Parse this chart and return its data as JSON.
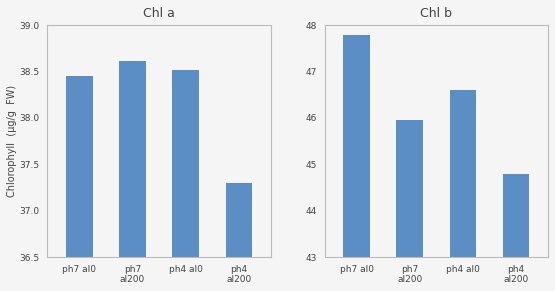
{
  "chl_a": {
    "title": "Chl a",
    "categories": [
      "ph7 al0",
      "ph7\nal200",
      "ph4 al0",
      "ph4\nal200"
    ],
    "values": [
      38.45,
      38.62,
      38.52,
      37.3
    ],
    "ylim": [
      36.5,
      39
    ],
    "yticks": [
      36.5,
      37.0,
      37.5,
      38.0,
      38.5,
      39.0
    ],
    "ylabel": "Chlorophyll  (μg/g  FW)"
  },
  "chl_b": {
    "title": "Chl b",
    "categories": [
      "ph7 al0",
      "ph7\nal200",
      "ph4 al0",
      "ph4\nal200"
    ],
    "values": [
      47.8,
      45.95,
      46.6,
      44.8
    ],
    "ylim": [
      43,
      48
    ],
    "yticks": [
      43,
      44,
      45,
      46,
      47,
      48
    ],
    "ylabel": ""
  },
  "bar_color": "#5B8EC5",
  "bar_width": 0.5,
  "title_fontsize": 9,
  "tick_fontsize": 6.5,
  "ylabel_fontsize": 7,
  "background_color": "#f5f5f5"
}
